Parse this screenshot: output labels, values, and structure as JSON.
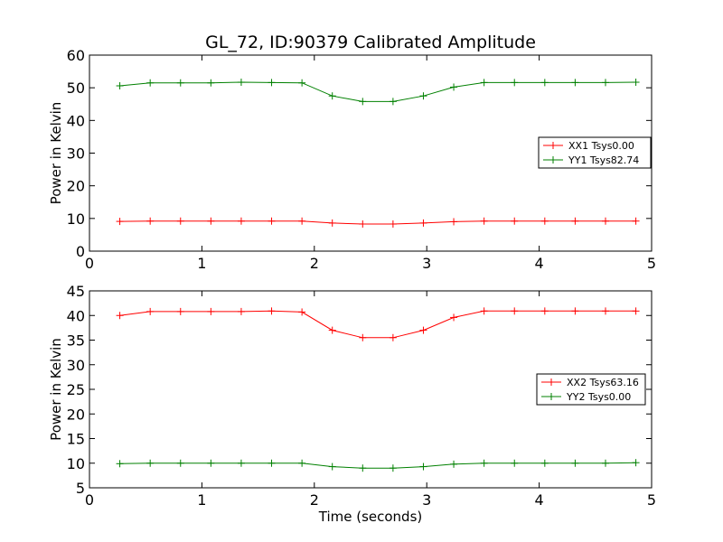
{
  "figure": {
    "title": "GL_72, ID:90379 Calibrated Amplitude",
    "xlabel": "Time (seconds)"
  },
  "chart_data": [
    {
      "type": "line",
      "ylabel": "Power in Kelvin",
      "xlim": [
        0,
        5
      ],
      "ylim": [
        0,
        60
      ],
      "xticks": [
        "0",
        "1",
        "2",
        "3",
        "4",
        "5"
      ],
      "yticks": [
        "0",
        "10",
        "20",
        "30",
        "40",
        "50",
        "60"
      ],
      "grid": false,
      "legend_position": "center-right",
      "x": [
        0.27,
        0.54,
        0.81,
        1.08,
        1.35,
        1.62,
        1.89,
        2.16,
        2.43,
        2.7,
        2.97,
        3.24,
        3.51,
        3.78,
        4.05,
        4.32,
        4.59,
        4.86
      ],
      "series": [
        {
          "name": "XX1 Tsys0.00",
          "color": "#ff0000",
          "values": [
            9.1,
            9.2,
            9.2,
            9.2,
            9.2,
            9.2,
            9.2,
            8.6,
            8.3,
            8.3,
            8.6,
            9.0,
            9.2,
            9.2,
            9.2,
            9.2,
            9.2,
            9.2
          ]
        },
        {
          "name": "YY1 Tsys82.74",
          "color": "#008000",
          "values": [
            50.6,
            51.5,
            51.5,
            51.5,
            51.7,
            51.6,
            51.5,
            47.5,
            45.8,
            45.8,
            47.5,
            50.2,
            51.6,
            51.6,
            51.6,
            51.6,
            51.6,
            51.7
          ]
        }
      ]
    },
    {
      "type": "line",
      "ylabel": "Power in Kelvin",
      "xlim": [
        0,
        5
      ],
      "ylim": [
        5,
        45
      ],
      "xticks": [
        "0",
        "1",
        "2",
        "3",
        "4",
        "5"
      ],
      "yticks": [
        "5",
        "10",
        "15",
        "20",
        "25",
        "30",
        "35",
        "40",
        "45"
      ],
      "grid": false,
      "legend_position": "center-right",
      "x": [
        0.27,
        0.54,
        0.81,
        1.08,
        1.35,
        1.62,
        1.89,
        2.16,
        2.43,
        2.7,
        2.97,
        3.24,
        3.51,
        3.78,
        4.05,
        4.32,
        4.59,
        4.86
      ],
      "series": [
        {
          "name": "XX2 Tsys63.16",
          "color": "#ff0000",
          "values": [
            40.0,
            40.8,
            40.8,
            40.8,
            40.8,
            40.9,
            40.7,
            37.0,
            35.5,
            35.5,
            37.0,
            39.6,
            40.9,
            40.9,
            40.9,
            40.9,
            40.9,
            40.9
          ]
        },
        {
          "name": "YY2 Tsys0.00",
          "color": "#008000",
          "values": [
            9.9,
            10.0,
            10.0,
            10.0,
            10.0,
            10.0,
            10.0,
            9.3,
            9.0,
            9.0,
            9.3,
            9.8,
            10.0,
            10.0,
            10.0,
            10.0,
            10.0,
            10.1
          ]
        }
      ]
    }
  ]
}
